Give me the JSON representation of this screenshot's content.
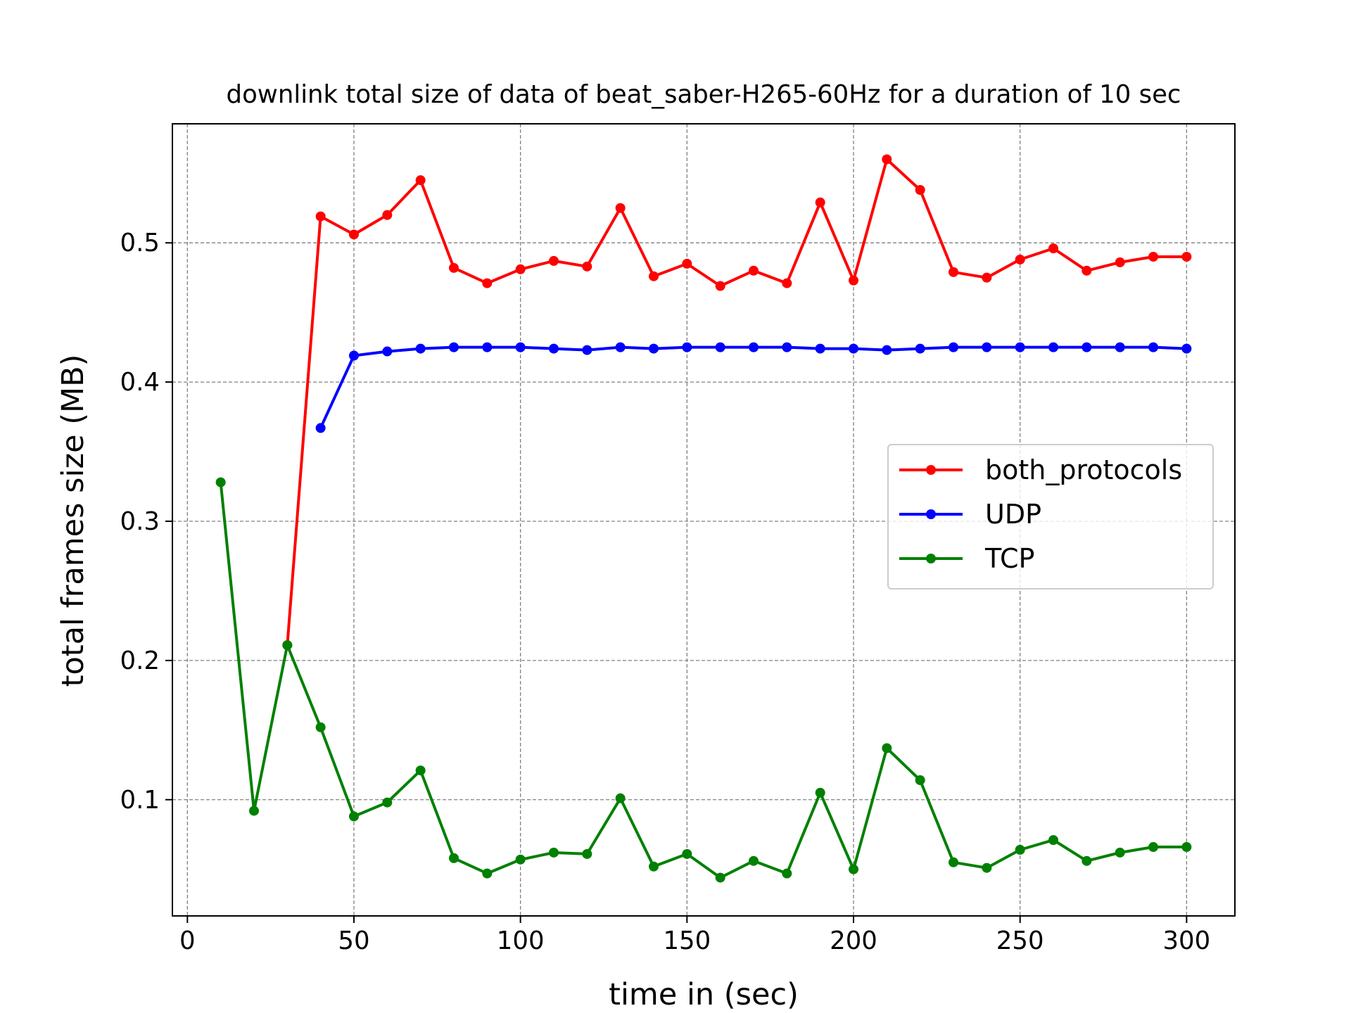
{
  "chart_data": {
    "type": "line",
    "title": "downlink total size of data of beat_saber-H265-60Hz for a duration of 10 sec",
    "xlabel": "time in (sec)",
    "ylabel": "total frames size (MB)",
    "xlim": [
      -4.5,
      314.5
    ],
    "ylim": [
      0.0165,
      0.5855
    ],
    "xticks": [
      0,
      50,
      100,
      150,
      200,
      250,
      300
    ],
    "yticks": [
      0.1,
      0.2,
      0.3,
      0.4,
      0.5
    ],
    "ytick_labels": [
      "0.1",
      "0.2",
      "0.3",
      "0.4",
      "0.5"
    ],
    "grid": true,
    "legend_position": "center-right",
    "series": [
      {
        "name": "both_protocols",
        "color": "#ff0000",
        "x": [
          30,
          40,
          50,
          60,
          70,
          80,
          90,
          100,
          110,
          120,
          130,
          140,
          150,
          160,
          170,
          180,
          190,
          200,
          210,
          220,
          230,
          240,
          250,
          260,
          270,
          280,
          290,
          300
        ],
        "values": [
          0.211,
          0.519,
          0.506,
          0.52,
          0.545,
          0.482,
          0.471,
          0.481,
          0.487,
          0.483,
          0.525,
          0.476,
          0.485,
          0.469,
          0.48,
          0.471,
          0.529,
          0.473,
          0.56,
          0.538,
          0.479,
          0.475,
          0.488,
          0.496,
          0.48,
          0.486,
          0.49,
          0.49
        ]
      },
      {
        "name": "UDP",
        "color": "#0000ff",
        "x": [
          40,
          50,
          60,
          70,
          80,
          90,
          100,
          110,
          120,
          130,
          140,
          150,
          160,
          170,
          180,
          190,
          200,
          210,
          220,
          230,
          240,
          250,
          260,
          270,
          280,
          290,
          300
        ],
        "values": [
          0.367,
          0.419,
          0.422,
          0.424,
          0.425,
          0.425,
          0.425,
          0.424,
          0.423,
          0.425,
          0.424,
          0.425,
          0.425,
          0.425,
          0.425,
          0.424,
          0.424,
          0.423,
          0.424,
          0.425,
          0.425,
          0.425,
          0.425,
          0.425,
          0.425,
          0.425,
          0.424
        ]
      },
      {
        "name": "TCP",
        "color": "#008000",
        "x": [
          10,
          20,
          30,
          40,
          50,
          60,
          70,
          80,
          90,
          100,
          110,
          120,
          130,
          140,
          150,
          160,
          170,
          180,
          190,
          200,
          210,
          220,
          230,
          240,
          250,
          260,
          270,
          280,
          290,
          300
        ],
        "values": [
          0.328,
          0.092,
          0.211,
          0.152,
          0.088,
          0.098,
          0.121,
          0.058,
          0.047,
          0.057,
          0.062,
          0.061,
          0.101,
          0.052,
          0.061,
          0.044,
          0.056,
          0.047,
          0.105,
          0.05,
          0.137,
          0.114,
          0.055,
          0.051,
          0.064,
          0.071,
          0.056,
          0.062,
          0.066,
          0.066
        ]
      }
    ]
  }
}
